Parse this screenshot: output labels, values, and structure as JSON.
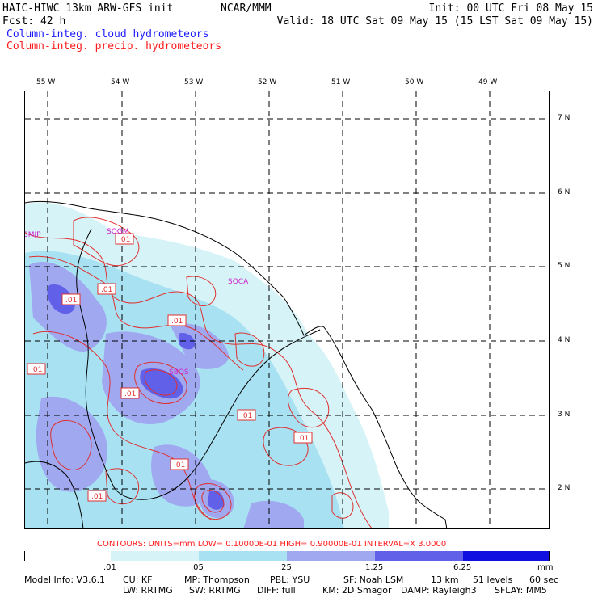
{
  "header": {
    "model_title": "HAIC-HIWC 13km ARW-GFS init",
    "org": "NCAR/MMM",
    "init": "Init: 00 UTC Fri 08 May 15",
    "fcst": "Fcst:   42 h",
    "valid": "Valid: 18 UTC Sat 09 May 15 (15 LST Sat 09 May 15)",
    "field_cloud": "Column-integ. cloud hydrometeors",
    "field_precip": "Column-integ. precip. hydrometeors"
  },
  "colors": {
    "cloud_text": "#1a1aff",
    "precip_text": "#ff1a1a",
    "key": [
      "#ffffff",
      "#d6f4f8",
      "#a8e2f2",
      "#a0a8f0",
      "#6060e8",
      "#1010e0"
    ]
  },
  "lon_labels": [
    "55 W",
    "54 W",
    "53 W",
    "52 W",
    "51 W",
    "50 W",
    "49 W"
  ],
  "lat_labels": [
    "7 N",
    "6 N",
    "5 N",
    "4 N",
    "3 N",
    "2 N"
  ],
  "stations": [
    "SMJP",
    "SOGM",
    "SOCA",
    "SBOS"
  ],
  "contour_labels": [
    ".01",
    ".01",
    ".01",
    ".01",
    ".01",
    ".01",
    ".01",
    ".01",
    ".01",
    ".01"
  ],
  "contours_line": "CONTOURS:  UNITS=mm   LOW= 0.10000E-01   HIGH= 0.90000E-01   INTERVAL=X   3.0000",
  "key_labels": [
    ".01",
    ".05",
    ".25",
    "1.25",
    "6.25",
    "mm"
  ],
  "model_info": {
    "line1": [
      "Model Info: V3.6.1",
      "CU: KF",
      "MP: Thompson",
      "PBL: YSU",
      "SF: Noah LSM",
      "13 km",
      "51 levels",
      "60 sec"
    ],
    "line2": [
      "LW: RRTMG",
      "SW: RRTMG",
      "DIFF: full",
      "KM: 2D Smagor",
      "DAMP: Rayleigh3",
      "SFLAY: MM5"
    ]
  }
}
